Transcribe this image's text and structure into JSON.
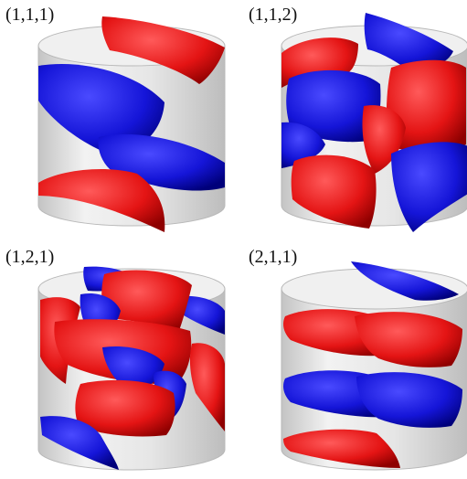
{
  "panels": [
    {
      "label": "(1,1,1)"
    },
    {
      "label": "(1,1,2)"
    },
    {
      "label": "(1,2,1)"
    },
    {
      "label": "(2,1,1)"
    }
  ],
  "colors": {
    "positive": "#e01a1a",
    "negative": "#1a1ad6",
    "cylinder": "#d6d6d6"
  }
}
